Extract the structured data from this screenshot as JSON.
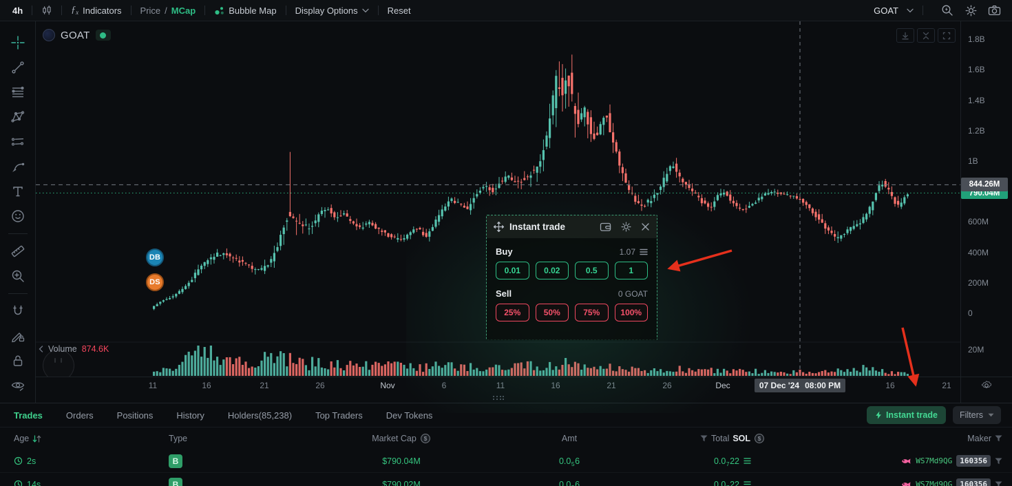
{
  "topbar": {
    "timeframe": "4h",
    "indicators": "Indicators",
    "price": "Price",
    "slash": "/",
    "mcap": "MCap",
    "bubble_map": "Bubble Map",
    "display_options": "Display Options",
    "reset": "Reset",
    "token": "GOAT",
    "fx_icon": {
      "f": "ƒ",
      "sub": "x"
    }
  },
  "chart": {
    "token": "GOAT",
    "volume_label": "Volume",
    "volume_value": "874.6K",
    "crosshair_price": "844.26M",
    "current_price": "790.04M",
    "crosshair_date": "07 Dec '24",
    "crosshair_clock": "08:00 PM",
    "dev_buy_badge": "DB",
    "dev_sell_badge": "DS",
    "price_ticks": [
      [
        "1.8B",
        1800
      ],
      [
        "1.6B",
        1600
      ],
      [
        "1.4B",
        1400
      ],
      [
        "1.2B",
        1200
      ],
      [
        "1B",
        1000
      ],
      [
        "600M",
        600
      ],
      [
        "400M",
        400
      ],
      [
        "200M",
        200
      ],
      [
        "0",
        0
      ]
    ],
    "volume_tick": "20M",
    "time_ticks": [
      [
        "11",
        222
      ],
      [
        "16",
        300
      ],
      [
        "21",
        384
      ],
      [
        "26",
        465
      ],
      [
        "Nov",
        563
      ],
      [
        "6",
        645
      ],
      [
        "11",
        727
      ],
      [
        "16",
        807
      ],
      [
        "21",
        888
      ],
      [
        "26",
        969
      ],
      [
        "Dec",
        1050
      ],
      [
        "16",
        1293
      ],
      [
        "21",
        1375
      ]
    ],
    "series": {
      "trend": [
        222,
        30,
        234,
        70,
        248,
        100,
        262,
        135,
        276,
        190,
        290,
        280,
        304,
        345,
        318,
        390,
        332,
        385,
        346,
        355,
        360,
        320,
        372,
        285,
        384,
        285,
        396,
        345,
        408,
        470,
        420,
        640,
        430,
        595,
        442,
        575,
        454,
        560,
        466,
        650,
        478,
        695,
        490,
        620,
        502,
        650,
        514,
        600,
        526,
        560,
        538,
        600,
        550,
        555,
        562,
        525,
        574,
        495,
        586,
        475,
        598,
        535,
        610,
        555,
        622,
        505,
        634,
        595,
        646,
        680,
        658,
        750,
        670,
        715,
        682,
        685,
        694,
        780,
        706,
        845,
        718,
        800,
        730,
        870,
        742,
        895,
        754,
        850,
        766,
        890,
        778,
        940,
        788,
        1000,
        796,
        1140,
        804,
        1340,
        812,
        1540,
        820,
        1490,
        828,
        1570,
        836,
        1320,
        844,
        1260,
        852,
        1330,
        860,
        1210,
        868,
        1160,
        876,
        1260,
        884,
        1300,
        892,
        1150,
        900,
        1010,
        908,
        905,
        916,
        805,
        924,
        760,
        932,
        705,
        940,
        720,
        948,
        745,
        956,
        785,
        964,
        845,
        972,
        925,
        980,
        985,
        988,
        905,
        996,
        860,
        1004,
        830,
        1012,
        785,
        1020,
        740,
        1028,
        712,
        1036,
        700,
        1044,
        760,
        1052,
        800,
        1060,
        770,
        1068,
        722,
        1076,
        692,
        1084,
        680,
        1092,
        702,
        1100,
        732,
        1108,
        762,
        1116,
        790,
        1124,
        800,
        1132,
        792,
        1140,
        782,
        1148,
        775,
        1156,
        770,
        1164,
        748,
        1172,
        722,
        1180,
        682,
        1188,
        642,
        1196,
        602,
        1204,
        552,
        1212,
        512,
        1220,
        488,
        1228,
        522,
        1236,
        558,
        1244,
        575,
        1252,
        592,
        1260,
        648,
        1268,
        700,
        1276,
        798,
        1284,
        858,
        1292,
        818,
        1300,
        742,
        1308,
        702,
        1316,
        758,
        1322,
        790
      ],
      "wick": [
        222,
        18,
        260,
        35,
        300,
        70,
        350,
        55,
        405,
        95,
        420,
        210,
        445,
        90,
        500,
        75,
        560,
        62,
        620,
        62,
        680,
        72,
        740,
        85,
        785,
        120,
        800,
        260,
        815,
        330,
        830,
        310,
        845,
        210,
        870,
        155,
        900,
        125,
        930,
        85,
        960,
        82,
        1000,
        72,
        1050,
        62,
        1100,
        52,
        1150,
        42,
        1180,
        62,
        1210,
        72,
        1250,
        62,
        1280,
        82,
        1322,
        62
      ],
      "volume_shape": [
        222,
        0.6,
        250,
        1.4,
        285,
        3.6,
        298,
        5.2,
        308,
        4.4,
        325,
        2.2,
        355,
        2.4,
        385,
        3,
        415,
        3,
        445,
        2.2,
        475,
        2.3,
        515,
        1.6,
        555,
        1.9,
        595,
        1.5,
        635,
        1.8,
        675,
        1.5,
        715,
        1.5,
        755,
        1.6,
        795,
        2.1,
        835,
        2.1,
        870,
        1.6,
        905,
        1.3,
        945,
        1.1,
        985,
        1.3,
        1025,
        1,
        1065,
        0.9,
        1105,
        0.8,
        1145,
        0.7,
        1185,
        0.8,
        1225,
        0.9,
        1258,
        1.6,
        1285,
        0.7,
        1322,
        0.5
      ],
      "spikes": [
        [
          419,
          1060
        ],
        [
          812,
          1655
        ],
        [
          820,
          1590
        ],
        [
          828,
          1670
        ]
      ]
    },
    "crosshair_price_value": 844.26,
    "current_price_value": 790.04,
    "crosshair_x": 1162
  },
  "panel": {
    "title": "Instant trade",
    "buy_label": "Buy",
    "buy_balance": "1.07",
    "buy_presets": [
      "0.01",
      "0.02",
      "0.5",
      "1"
    ],
    "sell_label": "Sell",
    "sell_balance": "0 GOAT",
    "sell_presets": [
      "25%",
      "50%",
      "75%",
      "100%"
    ]
  },
  "bottom": {
    "tabs": [
      "Trades",
      "Orders",
      "Positions",
      "History",
      "Holders(85,238)",
      "Top Traders",
      "Dev Tokens"
    ],
    "active_tab": "Trades",
    "instant_trade": "Instant trade",
    "filters": "Filters",
    "usd_symbol": "$",
    "header": {
      "age": "Age",
      "type": "Type",
      "market_cap": "Market Cap",
      "amt": "Amt",
      "total": "Total",
      "total_unit": "SOL",
      "maker": "Maker"
    },
    "rows": [
      {
        "age": "2s",
        "type": "B",
        "market_cap": "$790.04M",
        "amt": [
          "0.0",
          "5",
          "6"
        ],
        "total": [
          "0.0",
          "7",
          "22"
        ],
        "maker": "WS7Md9QG",
        "maker_trades": "160356"
      },
      {
        "age": "14s",
        "type": "B",
        "market_cap": "$790.02M",
        "amt": [
          "0.0",
          "5",
          "6"
        ],
        "total": [
          "0.0",
          "7",
          "22"
        ],
        "maker": "WS7Md9QG",
        "maker_trades": "160356"
      }
    ]
  },
  "colors": {
    "green": "#2ebd85",
    "red": "#f6465d",
    "candle_up": "#56c2ae",
    "candle_down": "#f7726c",
    "annotation_red": "#e5301c",
    "dev_buy_blue": "#1b84b4",
    "dev_sell_orange": "#e87b2c"
  }
}
